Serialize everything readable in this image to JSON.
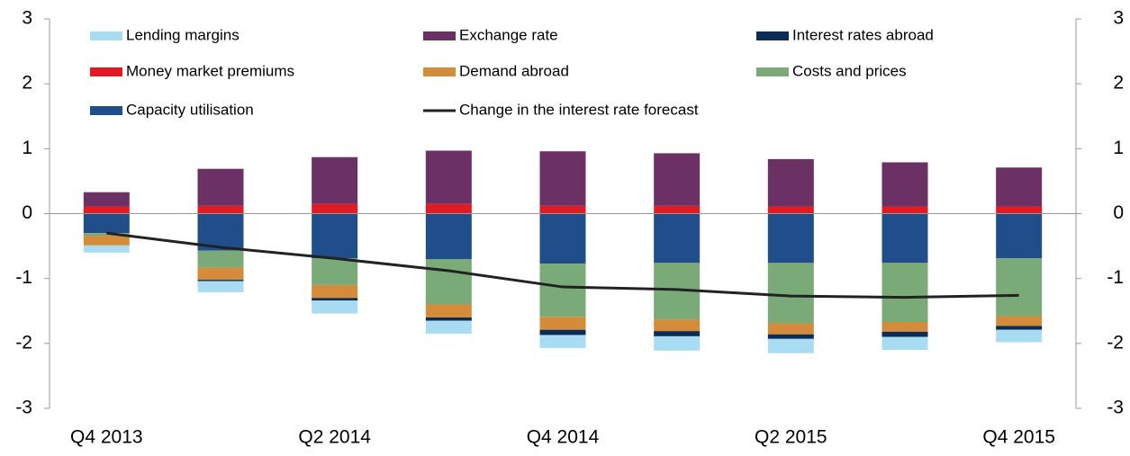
{
  "chart_data": {
    "type": "bar",
    "stacked": true,
    "categories": [
      "Q4 2013",
      null,
      "Q2 2014",
      null,
      "Q4 2014",
      null,
      "Q2 2015",
      null,
      "Q4 2015"
    ],
    "series": [
      {
        "name": "Lending margins",
        "color": "#a8dcf2",
        "values": [
          -0.11,
          -0.17,
          -0.2,
          -0.2,
          -0.2,
          -0.22,
          -0.22,
          -0.2,
          -0.19
        ]
      },
      {
        "name": "Exchange rate",
        "color": "#6b3064",
        "values": [
          0.22,
          0.57,
          0.72,
          0.82,
          0.84,
          0.81,
          0.73,
          0.68,
          0.6
        ]
      },
      {
        "name": "Interest rates abroad",
        "color": "#0b2c55",
        "values": [
          0,
          -0.02,
          -0.04,
          -0.05,
          -0.08,
          -0.08,
          -0.07,
          -0.08,
          -0.06
        ]
      },
      {
        "name": "Money market premiums",
        "color": "#e21a23",
        "values": [
          0.11,
          0.12,
          0.15,
          0.15,
          0.12,
          0.12,
          0.11,
          0.11,
          0.11
        ]
      },
      {
        "name": "Demand abroad",
        "color": "#d48b3a",
        "values": [
          -0.15,
          -0.19,
          -0.2,
          -0.2,
          -0.2,
          -0.18,
          -0.17,
          -0.15,
          -0.15
        ]
      },
      {
        "name": "Costs and prices",
        "color": "#7aaa78",
        "values": [
          -0.04,
          -0.26,
          -0.41,
          -0.7,
          -0.82,
          -0.87,
          -0.93,
          -0.91,
          -0.89
        ]
      },
      {
        "name": "Capacity utilisation",
        "color": "#1f4e8a",
        "values": [
          -0.3,
          -0.57,
          -0.69,
          -0.7,
          -0.77,
          -0.76,
          -0.76,
          -0.76,
          -0.69
        ]
      },
      {
        "name": "Change in the interest rate forecast",
        "type": "line",
        "color": "#222222",
        "values": [
          -0.3,
          -0.52,
          -0.69,
          -0.88,
          -1.13,
          -1.17,
          -1.27,
          -1.29,
          -1.26
        ]
      }
    ],
    "ylim": [
      -3,
      3
    ],
    "yticks": [
      -3,
      -2,
      -1,
      0,
      1,
      2,
      3
    ],
    "y2lim": [
      -3,
      3
    ],
    "y2ticks": [
      -3,
      -2,
      -1,
      0,
      1,
      2,
      3
    ]
  }
}
